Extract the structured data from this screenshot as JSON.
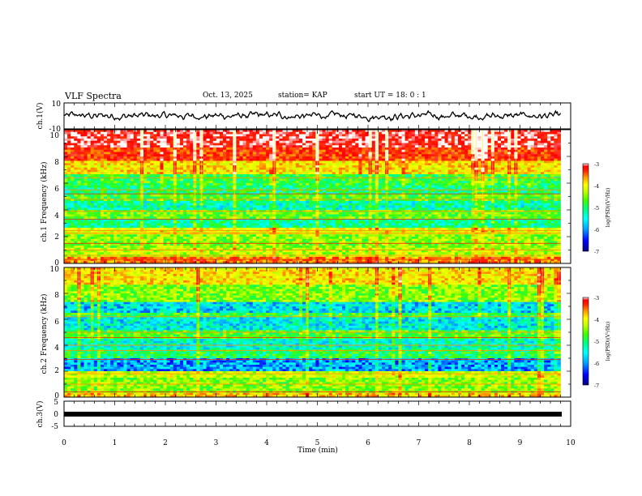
{
  "header": {
    "title": "VLF Spectra",
    "date": "Oct. 13, 2025",
    "station": "station= KAP",
    "start_ut": "start UT =  18: 0  : 1"
  },
  "colors": {
    "spectrogram_scale": [
      "#000080",
      "#0000ff",
      "#00a0ff",
      "#00ffff",
      "#00ff80",
      "#40ff00",
      "#c0ff00",
      "#ffff00",
      "#ffa000",
      "#ff3000",
      "#ff0000",
      "#ffffff"
    ],
    "line": "#000000",
    "background": "#ffffff"
  },
  "chart_data": [
    {
      "type": "line",
      "panel": "ch1-waveform",
      "ylabel": "ch.1(V)",
      "ylim": [
        -10,
        10
      ],
      "yticks": [
        "10",
        "-10"
      ],
      "xlim": [
        0,
        10
      ],
      "note": "noisy waveform oscillating between roughly -5 and +5 V over 0-9.8 min"
    },
    {
      "type": "heatmap",
      "panel": "ch1-spectrogram",
      "ylabel": "ch.1 Frequency (kHz)",
      "ylim": [
        0,
        10
      ],
      "yticks": [
        "0",
        "2",
        "4",
        "6",
        "8",
        "10"
      ],
      "xlim": [
        0,
        9.8
      ],
      "colorbar": {
        "label": "log(PSD)(V²/Hz)",
        "range": [
          -7,
          -3
        ],
        "ticks": [
          "-3",
          "-4",
          "-5",
          "-6",
          "-7"
        ]
      },
      "bands": [
        {
          "from": 0.0,
          "to": 0.5,
          "level": -4.0
        },
        {
          "from": 0.5,
          "to": 1.2,
          "level": -4.8
        },
        {
          "from": 1.2,
          "to": 2.2,
          "level": -5.0
        },
        {
          "from": 2.2,
          "to": 2.6,
          "level": -4.6
        },
        {
          "from": 2.6,
          "to": 3.4,
          "level": -5.6
        },
        {
          "from": 3.4,
          "to": 4.0,
          "level": -5.1
        },
        {
          "from": 4.0,
          "to": 4.6,
          "level": -5.7
        },
        {
          "from": 4.6,
          "to": 5.2,
          "level": -5.2
        },
        {
          "from": 5.2,
          "to": 5.8,
          "level": -5.5
        },
        {
          "from": 5.8,
          "to": 6.6,
          "level": -5.3
        },
        {
          "from": 6.6,
          "to": 7.6,
          "level": -4.4
        },
        {
          "from": 7.6,
          "to": 8.6,
          "level": -3.7
        },
        {
          "from": 8.6,
          "to": 10.0,
          "level": -3.3
        }
      ],
      "lines_khz": [
        0.3,
        0.6,
        1.0,
        1.5,
        2.25,
        2.45,
        3.3,
        3.9,
        4.8,
        5.2,
        5.5,
        6.4
      ]
    },
    {
      "type": "heatmap",
      "panel": "ch2-spectrogram",
      "ylabel": "ch.2 Frequency (kHz)",
      "ylim": [
        0,
        10
      ],
      "yticks": [
        "0",
        "2",
        "4",
        "6",
        "8",
        "10"
      ],
      "xlim": [
        0,
        9.8
      ],
      "colorbar": {
        "label": "log(PSD)(V²/Hz)",
        "range": [
          -7,
          -3
        ],
        "ticks": [
          "-3",
          "-4",
          "-5",
          "-6",
          "-7"
        ]
      },
      "bands": [
        {
          "from": 0.0,
          "to": 0.4,
          "level": -4.3
        },
        {
          "from": 0.4,
          "to": 1.5,
          "level": -5.0
        },
        {
          "from": 1.5,
          "to": 2.0,
          "level": -4.7
        },
        {
          "from": 2.0,
          "to": 3.0,
          "level": -6.2
        },
        {
          "from": 3.0,
          "to": 3.6,
          "level": -5.4
        },
        {
          "from": 3.6,
          "to": 4.5,
          "level": -5.8
        },
        {
          "from": 4.5,
          "to": 5.2,
          "level": -5.2
        },
        {
          "from": 5.2,
          "to": 6.1,
          "level": -5.9
        },
        {
          "from": 6.1,
          "to": 6.5,
          "level": -5.3
        },
        {
          "from": 6.5,
          "to": 7.4,
          "level": -6.0
        },
        {
          "from": 7.4,
          "to": 8.6,
          "level": -5.0
        },
        {
          "from": 8.6,
          "to": 10.0,
          "level": -4.4
        }
      ],
      "lines_khz": [
        0.4,
        1.0,
        1.8,
        2.9,
        3.6,
        4.0,
        4.6,
        5.0,
        6.2
      ]
    },
    {
      "type": "line",
      "panel": "ch3-waveform",
      "ylabel": "ch.3(V)",
      "ylim": [
        -5,
        5
      ],
      "yticks": [
        "5",
        "0",
        "-5"
      ],
      "xlim": [
        0,
        10
      ],
      "xlabel": "Time (min)",
      "xticks": [
        "0",
        "1",
        "2",
        "3",
        "4",
        "5",
        "6",
        "7",
        "8",
        "9",
        "10"
      ],
      "note": "flat thick band centered near 0 V from 0 to 9.8 min"
    }
  ]
}
